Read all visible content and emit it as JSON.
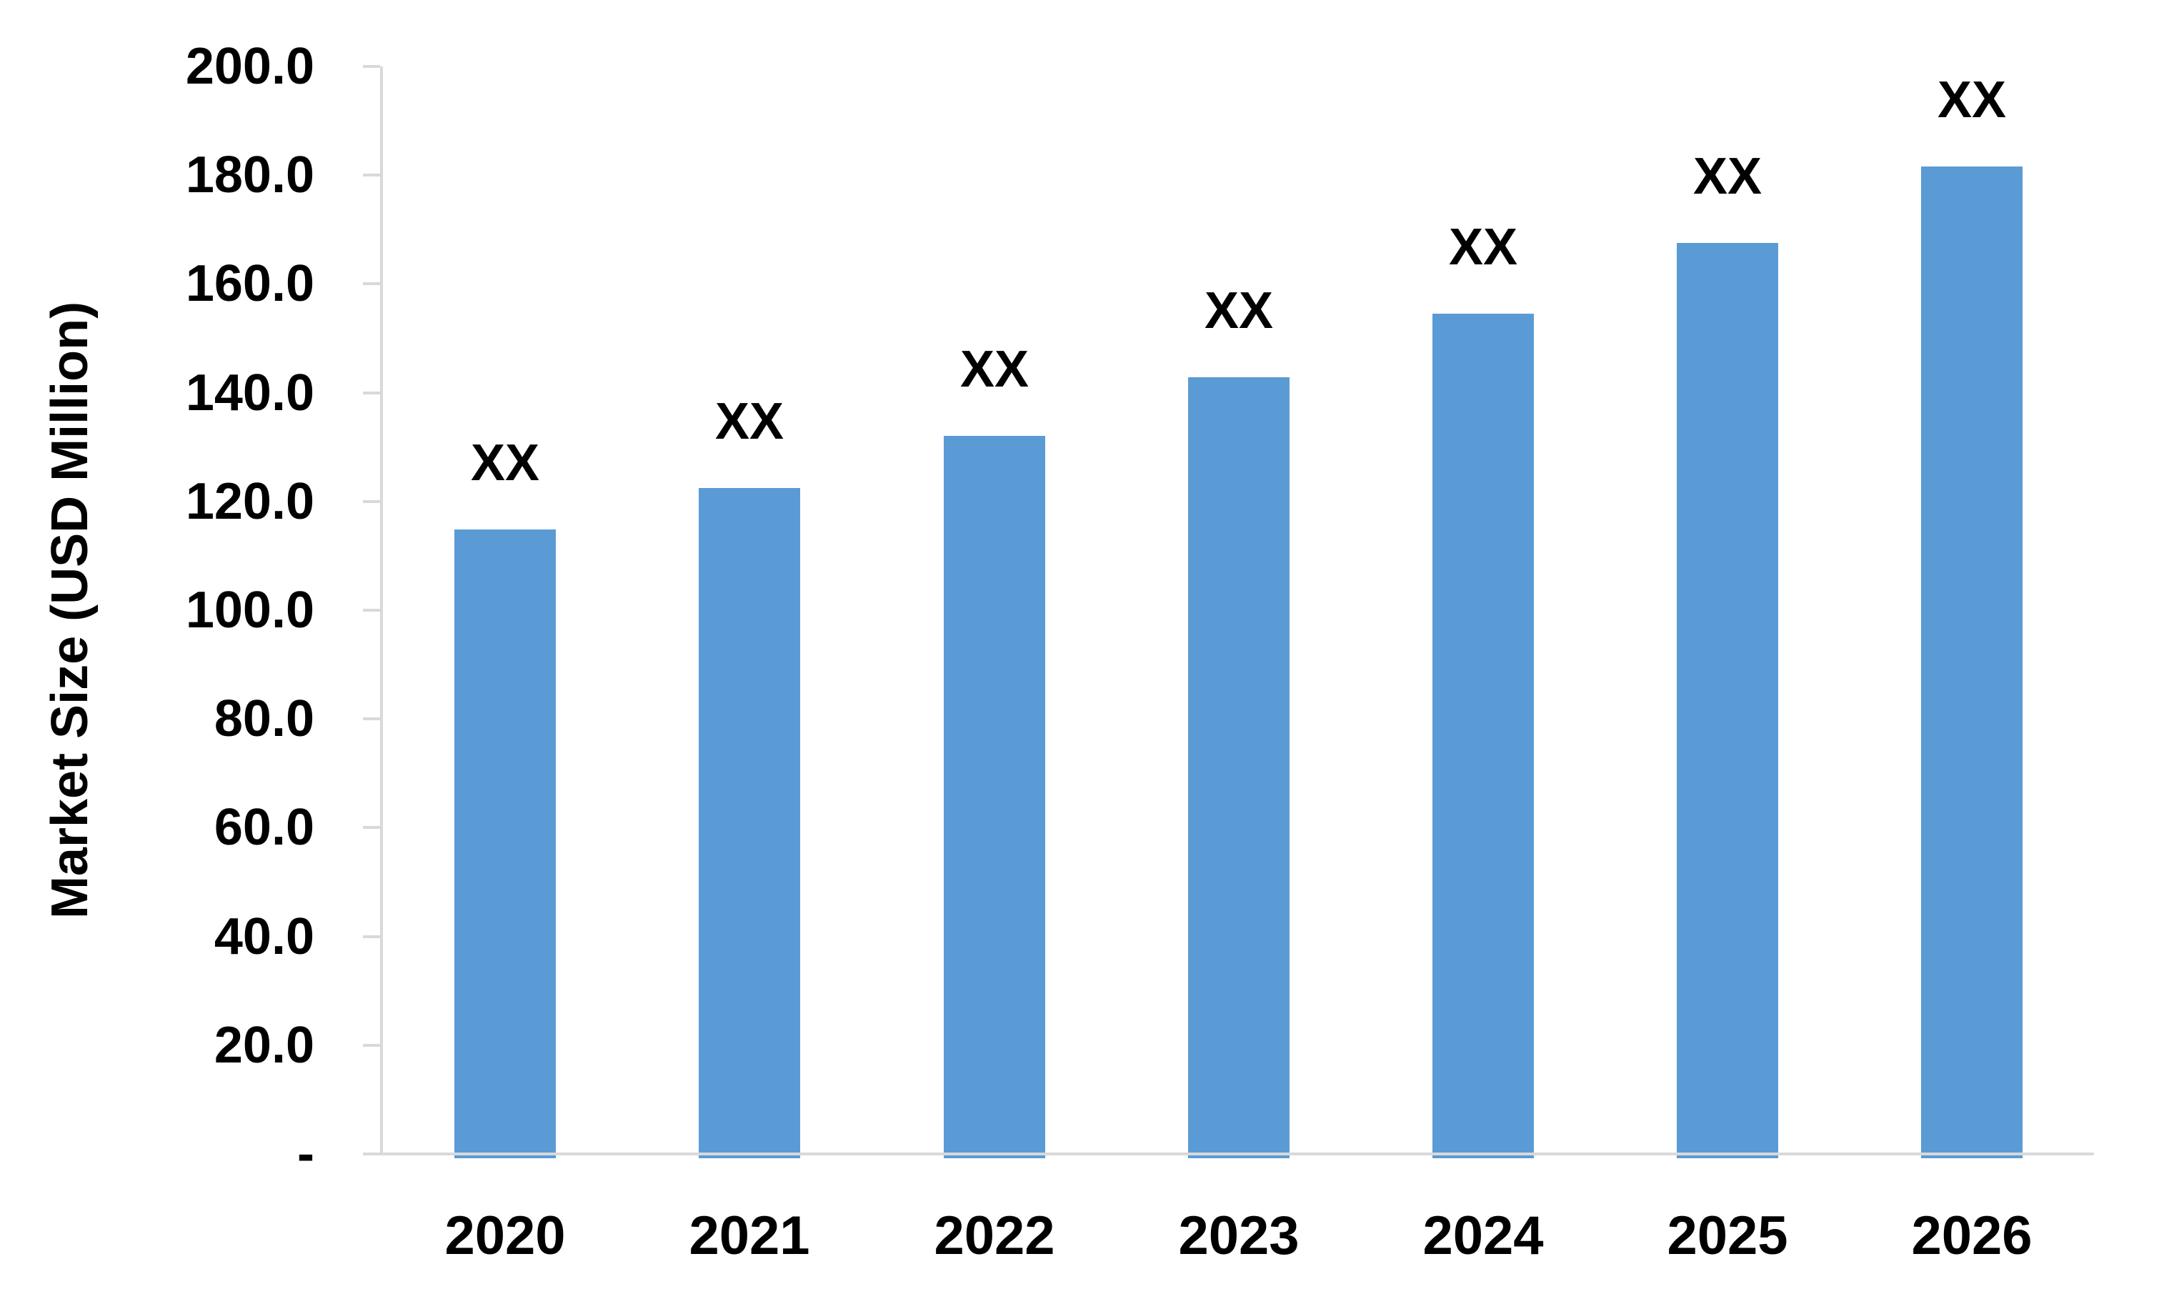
{
  "chart_data": {
    "type": "bar",
    "categories": [
      "2020",
      "2021",
      "2022",
      "2023",
      "2024",
      "2025",
      "2026"
    ],
    "values": [
      114.8,
      122.5,
      132.1,
      142.9,
      154.5,
      167.5,
      181.6
    ],
    "data_labels": [
      "XX",
      "XX",
      "XX",
      "XX",
      "XX",
      "XX",
      "XX"
    ],
    "ylabel": "Market Size (USD Million)",
    "ylim": [
      0,
      200
    ],
    "ytick_step": 20,
    "ytick_labels": [
      "-",
      "20.0",
      "40.0",
      "60.0",
      "80.0",
      "100.0",
      "120.0",
      "140.0",
      "160.0",
      "180.0",
      "200.0"
    ],
    "grid": false,
    "legend": "none",
    "colors": {
      "bar": "#5B9BD5",
      "axis": "#D9D9D9",
      "text": "#000000",
      "background": "#FFFFFF"
    }
  }
}
